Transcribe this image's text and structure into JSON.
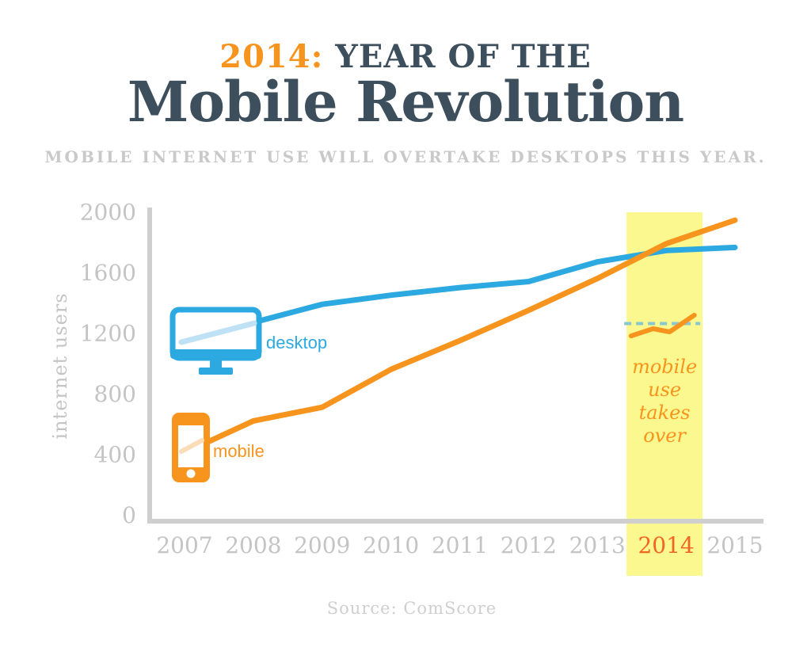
{
  "header": {
    "title_prefix": "2014:",
    "title_suffix": " YEAR OF THE",
    "title_main": "Mobile Revolution",
    "subtitle": "MOBILE INTERNET USE WILL OVERTAKE DESKTOPS THIS YEAR."
  },
  "chart_data": {
    "type": "line",
    "x": [
      2007,
      2008,
      2009,
      2010,
      2011,
      2012,
      2013,
      2014,
      2015
    ],
    "series": [
      {
        "name": "desktop",
        "color": "#2BA9E0",
        "icon": "desktop-monitor-icon",
        "values": [
          1120,
          1270,
          1390,
          1450,
          1500,
          1540,
          1670,
          1745,
          1765
        ]
      },
      {
        "name": "mobile",
        "color": "#F7941E",
        "icon": "mobile-phone-icon",
        "values": [
          410,
          620,
          710,
          960,
          1150,
          1350,
          1560,
          1790,
          1945
        ]
      }
    ],
    "title": "2014: Year of the Mobile Revolution",
    "xlabel": "",
    "ylabel": "internet users",
    "yticks": [
      0,
      400,
      800,
      1200,
      1600,
      2000
    ],
    "ylim": [
      0,
      2000
    ],
    "xlim": [
      2007,
      2015
    ],
    "grid": false,
    "legend_position": "icons-on-chart",
    "axis_color": "#CFCFCF",
    "tick_label_color": "#C4C4C4",
    "highlight": {
      "year": 2014,
      "band_color": "#FAF88E",
      "year_label_color": "#F26522"
    },
    "annotation": {
      "lines": [
        "mobile",
        "use",
        "takes",
        "over"
      ],
      "color": "#F7941E",
      "dashed_line_value": 1263,
      "dashed_line_color": "#8AC6CE",
      "crossover_motif_points": [
        [
          2013.49,
          1181
        ],
        [
          2013.81,
          1229
        ],
        [
          2014.05,
          1208
        ],
        [
          2014.41,
          1318
        ]
      ]
    },
    "icon_accent": {
      "light_blue": "#BEE1F5",
      "light_orange": "#FBDCB8"
    }
  },
  "footer": {
    "source": "Source: ComScore"
  }
}
